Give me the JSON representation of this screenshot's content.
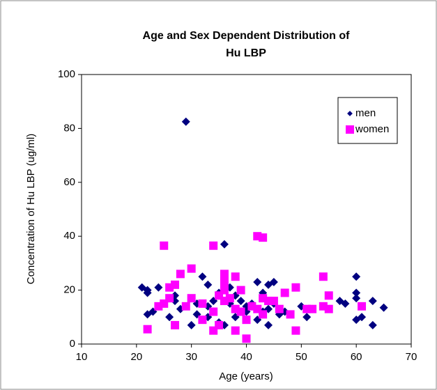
{
  "chart_data": {
    "type": "scatter",
    "title": [
      "Age and Sex Dependent Distribution of",
      "Hu LBP"
    ],
    "x_label": "Age (years)",
    "y_label": "Concentration of Hu LBP (ug/ml)",
    "xlim": [
      10,
      70
    ],
    "xticks": [
      10,
      20,
      30,
      40,
      50,
      60,
      70
    ],
    "ylim": [
      0,
      100
    ],
    "yticks": [
      0,
      20,
      40,
      60,
      80,
      100
    ],
    "grid": false,
    "legend": "upper right",
    "series": [
      {
        "name": "men",
        "color": "#000080",
        "marker": "diamond",
        "x": [
          21,
          22,
          22,
          22,
          23,
          24,
          26,
          27,
          27,
          28,
          29,
          30,
          31,
          31,
          32,
          33,
          33,
          33,
          34,
          35,
          35,
          36,
          36,
          37,
          37,
          38,
          38,
          39,
          40,
          40,
          41,
          42,
          42,
          43,
          43,
          44,
          44,
          44,
          45,
          45,
          46,
          47,
          47,
          50,
          51,
          52,
          57,
          58,
          60,
          60,
          60,
          60,
          61,
          63,
          63,
          65
        ],
        "values": [
          21,
          20,
          19,
          11,
          12,
          21,
          10,
          16,
          18,
          13,
          82.5,
          7,
          11,
          15,
          25,
          22,
          14,
          10,
          16,
          19,
          8,
          37,
          7,
          21,
          15,
          18,
          10,
          16,
          12,
          14,
          15,
          23,
          9,
          19,
          12,
          22,
          7,
          13,
          23,
          15,
          11,
          19,
          12,
          14,
          10,
          13,
          16,
          15,
          25,
          19,
          9,
          17,
          10,
          16,
          7,
          13.5
        ]
      },
      {
        "name": "women",
        "color": "#ff00ff",
        "marker": "square",
        "x": [
          22,
          24,
          25,
          25,
          26,
          26,
          27,
          27,
          28,
          29,
          30,
          30,
          32,
          32,
          34,
          34,
          34,
          35,
          35,
          36,
          36,
          36,
          36,
          37,
          38,
          38,
          38,
          39,
          39,
          40,
          40,
          41,
          42,
          42,
          43,
          43,
          43,
          44,
          45,
          46,
          47,
          48,
          49,
          49,
          51,
          52,
          54,
          54,
          55,
          55,
          61
        ],
        "values": [
          5.5,
          14,
          36.5,
          15,
          17,
          21,
          22,
          7,
          26,
          14,
          28,
          17,
          9,
          15,
          36.5,
          5,
          12,
          18,
          7,
          26,
          23,
          20,
          16,
          17,
          25,
          5,
          13,
          20,
          12,
          2,
          9,
          14,
          40,
          13,
          39.5,
          17,
          11,
          16,
          16,
          13,
          19,
          11,
          21,
          5,
          13,
          13,
          25,
          14,
          18,
          13,
          14
        ]
      }
    ]
  }
}
